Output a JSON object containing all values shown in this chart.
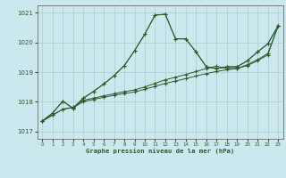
{
  "title": "Graphe pression niveau de la mer (hPa)",
  "bg_color": "#cce8ef",
  "grid_color": "#aacccc",
  "line_color": "#2d5a27",
  "xlim": [
    -0.5,
    23.5
  ],
  "ylim": [
    1016.75,
    1021.25
  ],
  "yticks": [
    1017,
    1018,
    1019,
    1020,
    1021
  ],
  "xticks": [
    0,
    1,
    2,
    3,
    4,
    5,
    6,
    7,
    8,
    9,
    10,
    11,
    12,
    13,
    14,
    15,
    16,
    17,
    18,
    19,
    20,
    21,
    22,
    23
  ],
  "s1_x": [
    0,
    1,
    2,
    3,
    4,
    5,
    6,
    7,
    8,
    9,
    10,
    11,
    12,
    13,
    14,
    15,
    16,
    17,
    18,
    19,
    20,
    21,
    22,
    23
  ],
  "s1_y": [
    1017.35,
    1017.55,
    1017.75,
    1017.8,
    1018.0,
    1018.08,
    1018.15,
    1018.22,
    1018.28,
    1018.33,
    1018.42,
    1018.52,
    1018.62,
    1018.7,
    1018.78,
    1018.87,
    1018.95,
    1019.02,
    1019.08,
    1019.12,
    1019.22,
    1019.38,
    1019.58,
    1020.55
  ],
  "s2_x": [
    0,
    1,
    2,
    3,
    4,
    5,
    6,
    7,
    8,
    9,
    10,
    11,
    12,
    13,
    14,
    15,
    16,
    17,
    18,
    19,
    20,
    21,
    22,
    23
  ],
  "s2_y": [
    1017.35,
    1017.55,
    1017.75,
    1017.82,
    1018.05,
    1018.12,
    1018.2,
    1018.27,
    1018.34,
    1018.4,
    1018.5,
    1018.62,
    1018.74,
    1018.83,
    1018.92,
    1019.02,
    1019.12,
    1019.2,
    1019.12,
    1019.12,
    1019.25,
    1019.42,
    1019.62,
    1020.55
  ],
  "s3_x": [
    0,
    1,
    2,
    3,
    4,
    5,
    6,
    7,
    8,
    9,
    10,
    11,
    12,
    13,
    14,
    15,
    16,
    17,
    18,
    19,
    20,
    21,
    22,
    23
  ],
  "s3_y": [
    1017.35,
    1017.62,
    1018.02,
    1017.78,
    1018.12,
    1018.35,
    1018.6,
    1018.88,
    1019.22,
    1019.72,
    1020.28,
    1020.92,
    1020.95,
    1020.12,
    1020.12,
    1019.68,
    1019.18,
    1019.12,
    1019.18,
    1019.18,
    1019.38,
    1019.68,
    1019.95,
    1020.55
  ],
  "s4_x": [
    0,
    1,
    2,
    3,
    4,
    5,
    6,
    7,
    8,
    9,
    10,
    11,
    12,
    13,
    14,
    15,
    16,
    17,
    18,
    19,
    20,
    21,
    22,
    23
  ],
  "s4_y": [
    1017.35,
    1017.62,
    1018.02,
    1017.78,
    1018.12,
    1018.35,
    1018.6,
    1018.88,
    1019.22,
    1019.72,
    1020.28,
    1020.92,
    1020.95,
    1020.12,
    1020.12,
    1019.68,
    1019.18,
    1019.12,
    1019.18,
    1019.18,
    1019.38,
    1019.68,
    1019.95,
    1020.55
  ]
}
